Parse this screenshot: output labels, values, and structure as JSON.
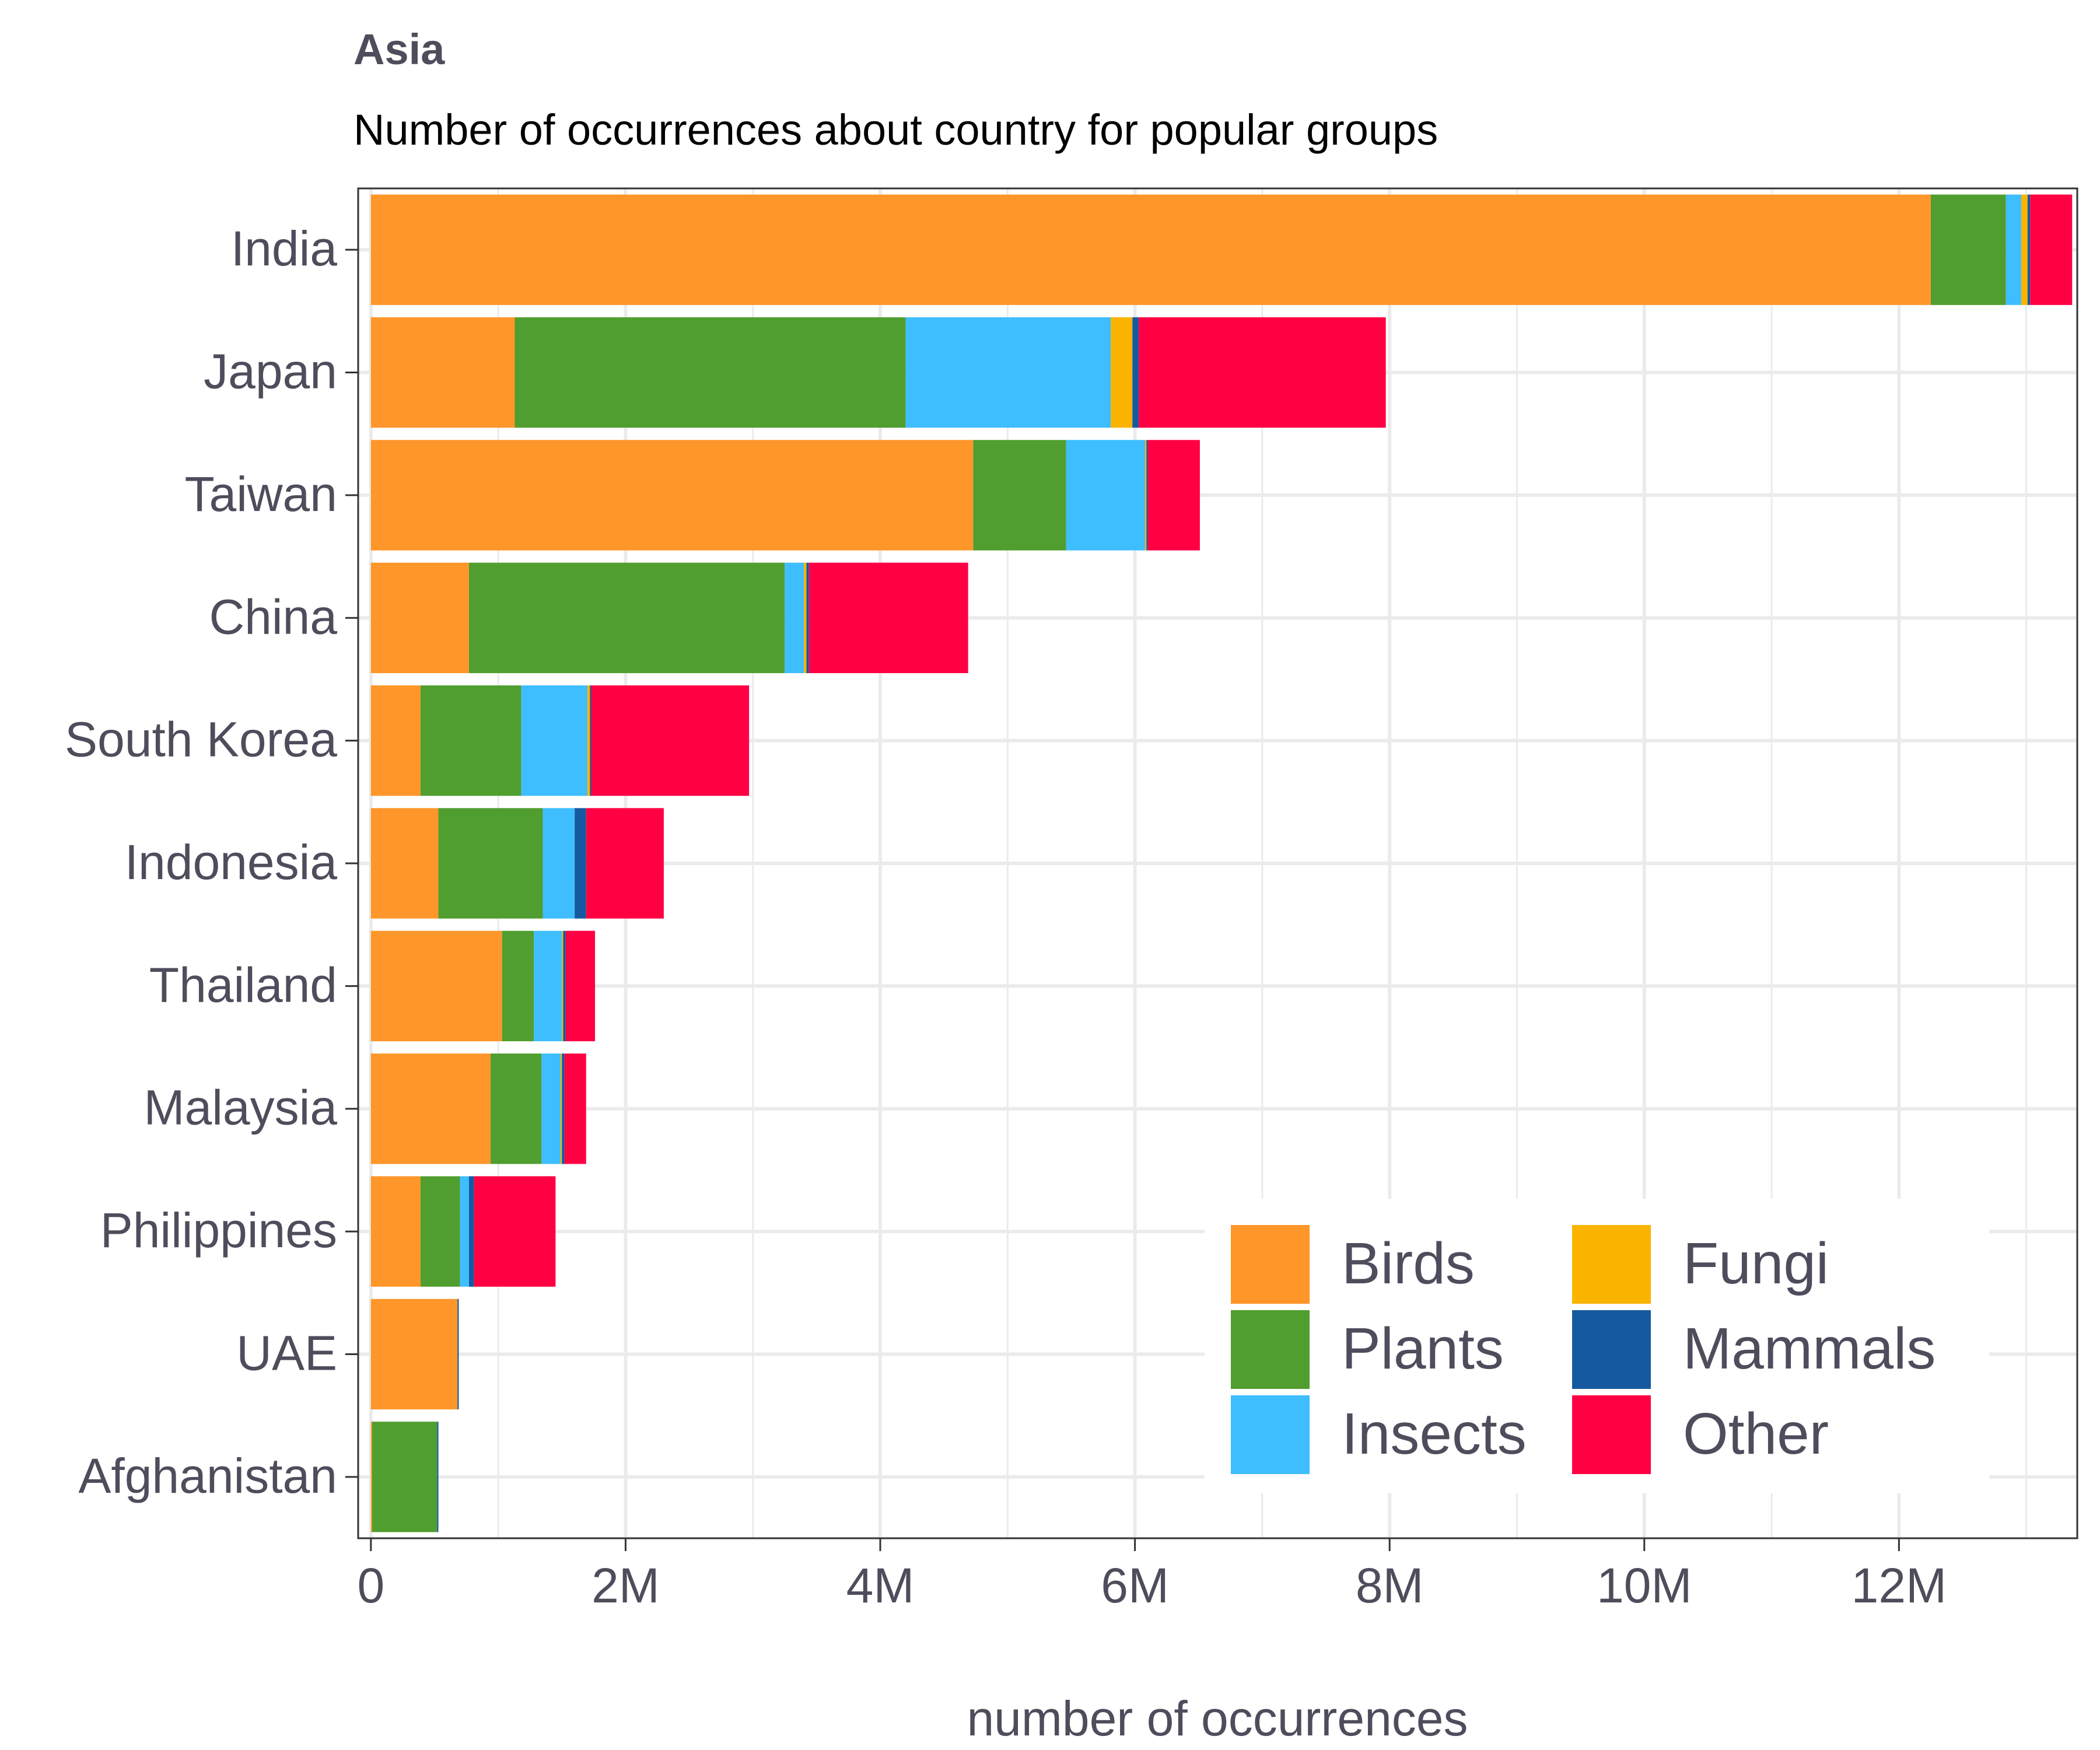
{
  "chart_data": {
    "type": "bar",
    "orientation": "horizontal",
    "stacked": true,
    "title": "Asia",
    "subtitle": "Number of occurrences about country for popular groups",
    "xlabel": "number of occurrences",
    "ylabel": "",
    "xlim": [
      -100000,
      13400000
    ],
    "x_ticks": [
      {
        "value": 0,
        "label": "0"
      },
      {
        "value": 2000000,
        "label": "2M"
      },
      {
        "value": 4000000,
        "label": "4M"
      },
      {
        "value": 6000000,
        "label": "6M"
      },
      {
        "value": 8000000,
        "label": "8M"
      },
      {
        "value": 10000000,
        "label": "10M"
      },
      {
        "value": 12000000,
        "label": "12M"
      }
    ],
    "grid": true,
    "legend_position": "bottom-right",
    "legend_columns": 2,
    "categories": [
      "India",
      "Japan",
      "Taiwan",
      "China",
      "South Korea",
      "Indonesia",
      "Thailand",
      "Malaysia",
      "Philippines",
      "UAE",
      "Afghanistan"
    ],
    "series": [
      {
        "name": "Birds",
        "color": "#FF962A",
        "values": [
          12250000,
          1130000,
          4730000,
          770000,
          390000,
          530000,
          1030000,
          940000,
          390000,
          680000,
          10000
        ]
      },
      {
        "name": "Plants",
        "color": "#509E2F",
        "values": [
          590000,
          3070000,
          730000,
          2480000,
          790000,
          820000,
          250000,
          400000,
          310000,
          0,
          510000
        ]
      },
      {
        "name": "Insects",
        "color": "#3EBEFF",
        "values": [
          120000,
          1610000,
          620000,
          150000,
          520000,
          250000,
          220000,
          150000,
          70000,
          0,
          0
        ]
      },
      {
        "name": "Fungi",
        "color": "#FAB400",
        "values": [
          50000,
          170000,
          10000,
          20000,
          20000,
          0,
          10000,
          10000,
          0,
          0,
          0
        ]
      },
      {
        "name": "Mammals",
        "color": "#155AA0",
        "values": [
          20000,
          50000,
          10000,
          20000,
          10000,
          90000,
          20000,
          20000,
          40000,
          10000,
          10000
        ]
      },
      {
        "name": "Other",
        "color": "#FF0043",
        "values": [
          330000,
          1940000,
          410000,
          1250000,
          1240000,
          610000,
          230000,
          170000,
          640000,
          0,
          0
        ]
      }
    ]
  },
  "colors": {
    "text": "#4D4D5C",
    "grid": "#EBEBEB",
    "panel_border": "#333333"
  }
}
